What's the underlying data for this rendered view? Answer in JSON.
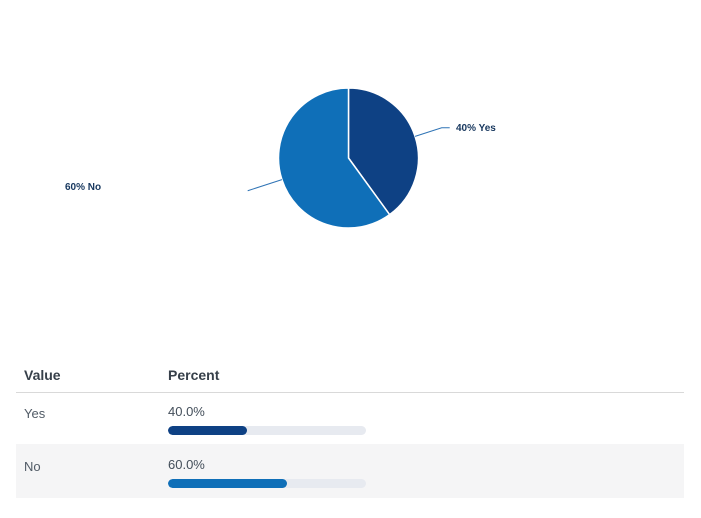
{
  "colors": {
    "yes_slice": "#0e4184",
    "no_slice": "#0f6fb8",
    "leader_line": "#2e73b5",
    "pie_label_text": "#17375e",
    "bar_track": "#e7eaf0",
    "alt_row_bg": "#f5f5f6",
    "header_border": "#d9d9d9",
    "header_text": "#37404a"
  },
  "chart_data": {
    "type": "pie",
    "title": "",
    "labels": [
      "Yes",
      "No"
    ],
    "values": [
      40,
      60
    ],
    "display_labels": [
      "40% Yes",
      "60% No"
    ],
    "colors": [
      "#0e4184",
      "#0f6fb8"
    ],
    "start_angle": "12 o'clock",
    "direction": "clockwise",
    "legend_position": "none",
    "slice_border_color": "#ffffff"
  },
  "table": {
    "headers": [
      "Value",
      "Percent"
    ],
    "rows": [
      {
        "value": "Yes",
        "percent_label": "40.0%",
        "percent": 40
      },
      {
        "value": "No",
        "percent_label": "60.0%",
        "percent": 60
      }
    ]
  }
}
